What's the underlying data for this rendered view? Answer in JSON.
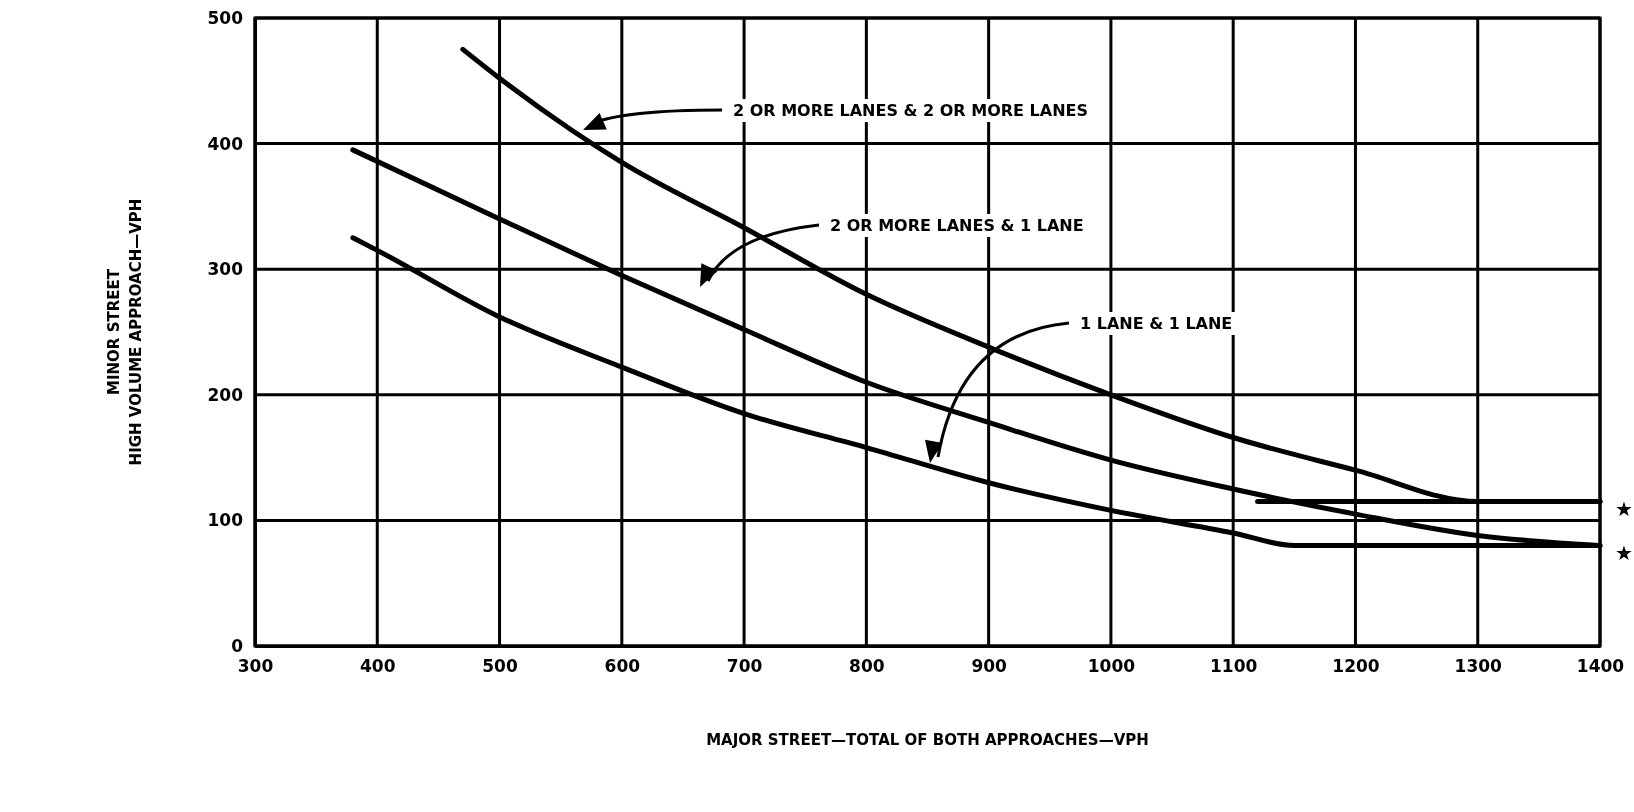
{
  "chart_data": {
    "type": "line",
    "xlabel": "MAJOR STREET—TOTAL OF BOTH APPROACHES—VPH",
    "ylabel": "MINOR STREET\nHIGH VOLUME APPROACH—VPH",
    "xlim": [
      300,
      1400
    ],
    "xticks": [
      300,
      400,
      500,
      600,
      700,
      800,
      900,
      1000,
      1100,
      1200,
      1300,
      1400
    ],
    "ylim": [
      0,
      500
    ],
    "yticks": [
      0,
      100,
      200,
      300,
      400,
      500
    ],
    "grid": true,
    "marker": "none",
    "line_style": "solid",
    "series": [
      {
        "color": "#000000",
        "x": [
          470,
          500,
          560,
          600,
          700,
          800,
          900,
          1000,
          1100,
          1200,
          1300,
          1400
        ],
        "values": [
          475,
          452,
          410,
          385,
          333,
          280,
          238,
          200,
          166,
          140,
          115,
          115
        ]
      },
      {
        "color": "#000000",
        "x": [
          380,
          500,
          600,
          700,
          800,
          900,
          1000,
          1100,
          1200,
          1300,
          1400
        ],
        "values": [
          395,
          340,
          295,
          252,
          210,
          178,
          148,
          125,
          105,
          88,
          80
        ]
      },
      {
        "color": "#000000",
        "x": [
          380,
          400,
          500,
          600,
          700,
          800,
          900,
          1000,
          1100,
          1150,
          1400
        ],
        "values": [
          325,
          315,
          262,
          222,
          185,
          158,
          130,
          108,
          90,
          80,
          80
        ]
      },
      {
        "color": "#000000",
        "x": [
          1120,
          1400
        ],
        "values": [
          115,
          115
        ]
      }
    ],
    "annotations": [
      "2 OR MORE LANES & 2 OR MORE LANES",
      "2 OR MORE LANES & 1 LANE",
      "1 LANE & 1 LANE",
      {
        "text": "★",
        "x": 1400,
        "y": 115
      },
      {
        "text": "★",
        "x": 1400,
        "y": 80
      }
    ]
  }
}
